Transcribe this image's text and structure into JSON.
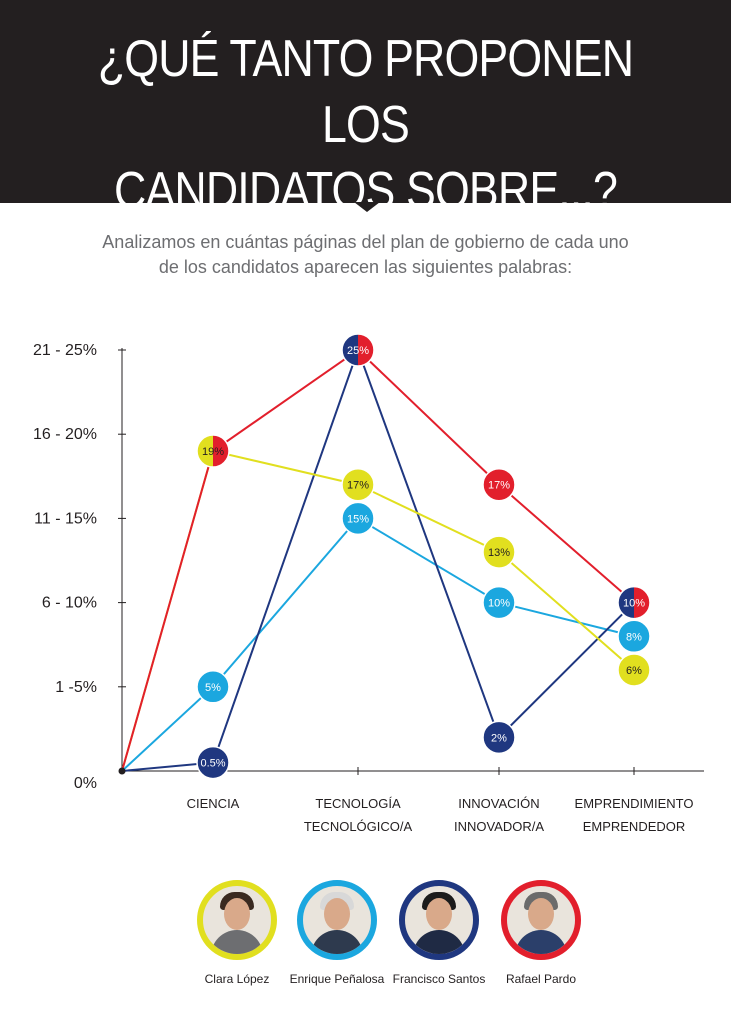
{
  "header": {
    "title_line1": "¿QUÉ TANTO PROPONEN LOS",
    "title_line2": "CANDIDATOS SOBRE...?"
  },
  "subtitle": {
    "line1": "Analizamos en cuántas páginas del plan de gobierno de cada uno",
    "line2": "de los candidatos aparecen las siguientes palabras:"
  },
  "colors": {
    "background": "#ffffff",
    "header": "#231f20",
    "axis": "#231f20",
    "clara": "#e1df1f",
    "enrique": "#1ba7df",
    "francisco": "#1f3780",
    "rafael": "#e21f2c"
  },
  "chart_data": {
    "type": "line",
    "categories": [
      "CIENCIA",
      "TECNOLOGÍA\nTECNOLÓGICO/A",
      "INNOVACIÓN\nINNOVADOR/A",
      "EMPRENDIMIENTO\nEMPRENDEDOR"
    ],
    "y_ticks": [
      "0%",
      "1 -5%",
      "6 - 10%",
      "11 - 15%",
      "16 - 20%",
      "21 - 25%"
    ],
    "ylim": [
      0,
      25
    ],
    "series": [
      {
        "name": "Clara López",
        "color": "#e1df1f",
        "values": [
          19,
          17,
          13,
          6
        ],
        "labels": [
          "19%",
          "17%",
          "13%",
          "6%"
        ]
      },
      {
        "name": "Enrique Peñalosa",
        "color": "#1ba7df",
        "values": [
          5,
          15,
          10,
          8
        ],
        "labels": [
          "5%",
          "15%",
          "10%",
          "8%"
        ]
      },
      {
        "name": "Francisco Santos",
        "color": "#1f3780",
        "values": [
          0.5,
          25,
          2,
          10
        ],
        "labels": [
          "0.5%",
          "25%",
          "2%",
          "10%"
        ]
      },
      {
        "name": "Rafael Pardo",
        "color": "#e21f2c",
        "values": [
          19,
          25,
          17,
          10
        ],
        "labels": [
          "19%",
          "25%",
          "17%",
          "10%"
        ]
      }
    ]
  },
  "candidates": [
    {
      "name": "Clara López",
      "color": "#e1df1f",
      "hair": "#3a2a20",
      "suit": "#6d6e71"
    },
    {
      "name": "Enrique Peñalosa",
      "color": "#1ba7df",
      "hair": "#d8d8d8",
      "suit": "#2e3a4e"
    },
    {
      "name": "Francisco Santos",
      "color": "#1f3780",
      "hair": "#1b1b1b",
      "suit": "#1f2a44"
    },
    {
      "name": "Rafael Pardo",
      "color": "#e21f2c",
      "hair": "#6b6b6b",
      "suit": "#2b3f6a"
    }
  ]
}
